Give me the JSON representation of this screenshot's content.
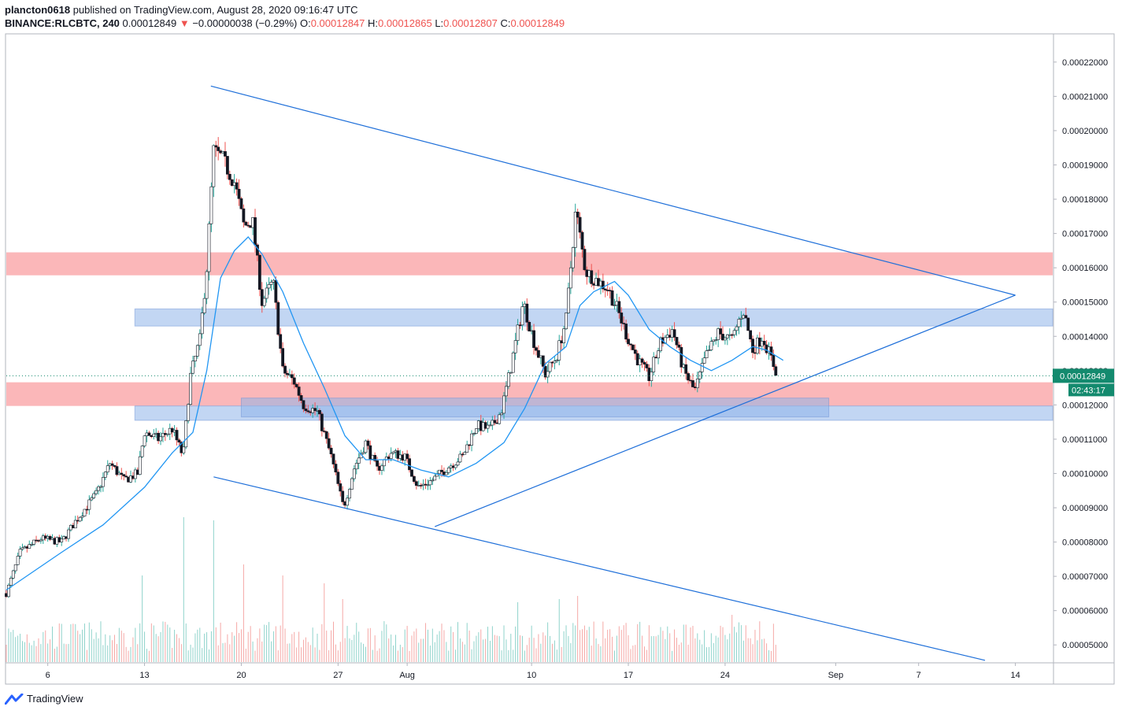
{
  "header": {
    "user": "plancton0618",
    "published": "published on TradingView.com, August 28, 2020 09:16:47 UTC",
    "symbol": "BINANCE:RLCBTC, 240",
    "price": "0.00012849",
    "arrow": "▼",
    "change": "−0.00000038 (−0.29%)",
    "o_label": "O:",
    "o_value": "0.00012847",
    "h_label": "H:",
    "h_value": "0.00012865",
    "l_label": "L:",
    "l_value": "0.00012807",
    "c_label": "C:",
    "c_value": "0.00012849"
  },
  "footer": {
    "brand": "TradingView"
  },
  "colors": {
    "up": "#26a69a",
    "down": "#ef5350",
    "candle": "#131722",
    "ma": "#2196f3",
    "trend": "#1e6fd9",
    "zone_red": "#f77c80",
    "zone_blue": "#90b4ea",
    "last": "#138a6e"
  },
  "chart_data": {
    "type": "candlestick",
    "title": "BINANCE:RLCBTC, 240",
    "ylim": [
      4.5e-05,
      0.000228
    ],
    "y_ticks": [
      "0.00005000",
      "0.00006000",
      "0.00007000",
      "0.00008000",
      "0.00009000",
      "0.00010000",
      "0.00011000",
      "0.00012000",
      "0.00013000",
      "0.00014000",
      "0.00015000",
      "0.00016000",
      "0.00017000",
      "0.00018000",
      "0.00019000",
      "0.00020000",
      "0.00021000",
      "0.00022000"
    ],
    "x_ticks": [
      {
        "label": "6",
        "day": 6
      },
      {
        "label": "13",
        "day": 13
      },
      {
        "label": "20",
        "day": 20
      },
      {
        "label": "27",
        "day": 27
      },
      {
        "label": "Aug",
        "day": 32
      },
      {
        "label": "10",
        "day": 41
      },
      {
        "label": "17",
        "day": 48
      },
      {
        "label": "24",
        "day": 55
      },
      {
        "label": "Sep",
        "day": 63
      },
      {
        "label": "7",
        "day": 69
      },
      {
        "label": "14",
        "day": 76
      }
    ],
    "x_range_days": [
      3.0,
      78.7
    ],
    "last_price": "0.00012849",
    "countdown": "02:43:17",
    "price_path": [
      [
        3.0,
        6.5e-05
      ],
      [
        4.0,
        7.7e-05
      ],
      [
        5.5,
        8.1e-05
      ],
      [
        7.0,
        8e-05
      ],
      [
        8.0,
        8.6e-05
      ],
      [
        9.5,
        9.4e-05
      ],
      [
        10.5,
        0.000103
      ],
      [
        11.5,
        9.8e-05
      ],
      [
        12.5,
        0.0001
      ],
      [
        13.0,
        0.000112
      ],
      [
        14.0,
        0.00011
      ],
      [
        15.0,
        0.000113
      ],
      [
        15.8,
        0.000105
      ],
      [
        16.3,
        0.000128
      ],
      [
        17.0,
        0.000139
      ],
      [
        17.5,
        0.00016
      ],
      [
        18.0,
        0.000194
      ],
      [
        18.6,
        0.000192
      ],
      [
        19.5,
        0.000185
      ],
      [
        20.2,
        0.000172
      ],
      [
        20.8,
        0.000174
      ],
      [
        21.5,
        0.00015
      ],
      [
        22.3,
        0.000156
      ],
      [
        23.0,
        0.00013
      ],
      [
        23.8,
        0.000127
      ],
      [
        24.5,
        0.00012
      ],
      [
        25.5,
        0.000118
      ],
      [
        26.5,
        0.000105
      ],
      [
        27.4,
        9e-05
      ],
      [
        28.2,
        0.000102
      ],
      [
        29.0,
        0.000109
      ],
      [
        29.8,
        0.000101
      ],
      [
        30.8,
        0.000106
      ],
      [
        31.8,
        0.000105
      ],
      [
        32.8,
        9.6e-05
      ],
      [
        33.8,
        9.8e-05
      ],
      [
        35.0,
        0.000102
      ],
      [
        36.0,
        0.000105
      ],
      [
        37.0,
        0.000114
      ],
      [
        38.0,
        0.000113
      ],
      [
        38.8,
        0.000118
      ],
      [
        39.5,
        0.000131
      ],
      [
        40.4,
        0.00015
      ],
      [
        41.2,
        0.000138
      ],
      [
        42.0,
        0.000129
      ],
      [
        42.8,
        0.000134
      ],
      [
        43.5,
        0.000145
      ],
      [
        44.2,
        0.000177
      ],
      [
        44.9,
        0.000159
      ],
      [
        45.5,
        0.000157
      ],
      [
        46.5,
        0.000154
      ],
      [
        47.2,
        0.000148
      ],
      [
        47.9,
        0.00014
      ],
      [
        48.7,
        0.000133
      ],
      [
        49.5,
        0.000128
      ],
      [
        50.3,
        0.000138
      ],
      [
        51.2,
        0.000142
      ],
      [
        52.0,
        0.00013
      ],
      [
        52.8,
        0.000124
      ],
      [
        53.6,
        0.000134
      ],
      [
        54.5,
        0.000141
      ],
      [
        55.5,
        0.000139
      ],
      [
        56.3,
        0.000148
      ],
      [
        57.0,
        0.000136
      ],
      [
        57.7,
        0.00014
      ],
      [
        58.2,
        0.000135
      ],
      [
        58.8,
        0.0001285
      ]
    ],
    "moving_average": [
      [
        3.0,
        6.6e-05
      ],
      [
        7.0,
        7.7e-05
      ],
      [
        10.0,
        8.5e-05
      ],
      [
        13.0,
        9.6e-05
      ],
      [
        15.0,
        0.000106
      ],
      [
        16.5,
        0.000112
      ],
      [
        17.5,
        0.00013
      ],
      [
        18.5,
        0.000157
      ],
      [
        19.5,
        0.000165
      ],
      [
        20.5,
        0.000169
      ],
      [
        21.5,
        0.000164
      ],
      [
        23.0,
        0.000153
      ],
      [
        24.5,
        0.000138
      ],
      [
        26.0,
        0.000125
      ],
      [
        27.5,
        0.000111
      ],
      [
        29.0,
        0.000104
      ],
      [
        31.0,
        0.000104
      ],
      [
        33.0,
        0.000101
      ],
      [
        35.0,
        9.9e-05
      ],
      [
        37.0,
        0.000103
      ],
      [
        39.0,
        0.000109
      ],
      [
        40.5,
        0.000119
      ],
      [
        42.0,
        0.000132
      ],
      [
        43.5,
        0.000137
      ],
      [
        44.5,
        0.000149
      ],
      [
        45.5,
        0.000153
      ],
      [
        47.0,
        0.000156
      ],
      [
        48.0,
        0.000152
      ],
      [
        49.5,
        0.000142
      ],
      [
        51.0,
        0.000137
      ],
      [
        52.5,
        0.000133
      ],
      [
        54.0,
        0.00013
      ],
      [
        55.5,
        0.000133
      ],
      [
        57.0,
        0.000137
      ],
      [
        58.0,
        0.000136
      ],
      [
        59.2,
        0.000133
      ]
    ],
    "trendlines": [
      {
        "name": "upper",
        "from": [
          17.8,
          0.000213
        ],
        "to": [
          76.0,
          0.000152
        ]
      },
      {
        "name": "rising",
        "from": [
          34.0,
          8.45e-05
        ],
        "to": [
          76.0,
          0.000152
        ]
      },
      {
        "name": "lower",
        "from": [
          18.0,
          9.9e-05
        ],
        "to": [
          73.8,
          4.55e-05
        ]
      }
    ],
    "zones": [
      {
        "color": "red",
        "from_day": 3.0,
        "to_day": 78.7,
        "top": 0.0001645,
        "bottom": 0.0001578
      },
      {
        "color": "blue",
        "from_day": 12.3,
        "to_day": 78.7,
        "top": 0.000148,
        "bottom": 0.000143
      },
      {
        "color": "red",
        "from_day": 3.0,
        "to_day": 78.7,
        "top": 0.0001266,
        "bottom": 0.0001197
      },
      {
        "color": "blue",
        "from_day": 12.3,
        "to_day": 78.7,
        "top": 0.0001197,
        "bottom": 0.0001155
      },
      {
        "color": "blue",
        "from_day": 20.0,
        "to_day": 62.5,
        "top": 0.000122,
        "bottom": 0.0001165
      }
    ],
    "volume_spikes": [
      [
        12.8,
        0.55
      ],
      [
        15.8,
        0.92
      ],
      [
        18.0,
        0.9
      ],
      [
        20.2,
        0.62
      ],
      [
        23.0,
        0.55
      ],
      [
        26.0,
        0.5
      ],
      [
        27.3,
        0.4
      ],
      [
        40.0,
        0.38
      ],
      [
        43.0,
        0.4
      ],
      [
        44.3,
        0.42
      ],
      [
        55.5,
        0.3
      ]
    ]
  }
}
